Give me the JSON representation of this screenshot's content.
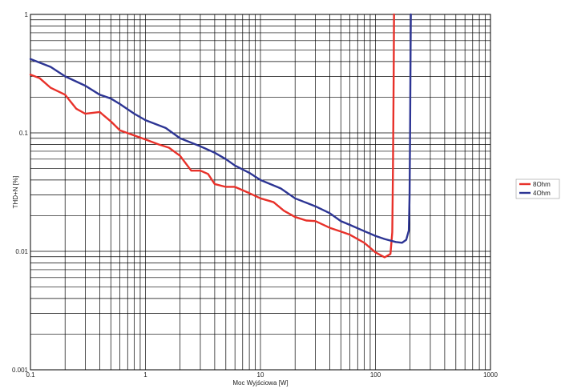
{
  "chart_data": {
    "type": "line",
    "title": "",
    "xlabel": "Moc Wyjściowa [W]",
    "ylabel": "THD+N [%]",
    "x_scale": "log",
    "y_scale": "log",
    "xlim": [
      0.1,
      1000
    ],
    "ylim": [
      0.001,
      1
    ],
    "x_tick_labels": [
      "0.1",
      "1",
      "10",
      "100",
      "1000"
    ],
    "y_tick_labels": [
      "0.001",
      "0.01",
      "0.1",
      "1"
    ],
    "grid": true,
    "legend_position": "right",
    "series": [
      {
        "name": "8Ohm",
        "color": "#e8312a",
        "points": [
          [
            0.1,
            0.31
          ],
          [
            0.12,
            0.29
          ],
          [
            0.15,
            0.24
          ],
          [
            0.2,
            0.21
          ],
          [
            0.25,
            0.16
          ],
          [
            0.3,
            0.145
          ],
          [
            0.4,
            0.15
          ],
          [
            0.5,
            0.125
          ],
          [
            0.6,
            0.105
          ],
          [
            0.8,
            0.095
          ],
          [
            1,
            0.088
          ],
          [
            1.3,
            0.08
          ],
          [
            1.6,
            0.075
          ],
          [
            2,
            0.064
          ],
          [
            2.5,
            0.048
          ],
          [
            3,
            0.048
          ],
          [
            3.5,
            0.045
          ],
          [
            4,
            0.037
          ],
          [
            5,
            0.035
          ],
          [
            6,
            0.035
          ],
          [
            8,
            0.031
          ],
          [
            10,
            0.028
          ],
          [
            13,
            0.026
          ],
          [
            16,
            0.022
          ],
          [
            20,
            0.0195
          ],
          [
            25,
            0.0182
          ],
          [
            30,
            0.018
          ],
          [
            40,
            0.0158
          ],
          [
            50,
            0.0147
          ],
          [
            60,
            0.0138
          ],
          [
            80,
            0.0118
          ],
          [
            100,
            0.0098
          ],
          [
            120,
            0.0089
          ],
          [
            135,
            0.0095
          ],
          [
            140,
            0.0145
          ],
          [
            142,
            0.05
          ],
          [
            144,
            0.3
          ],
          [
            145,
            1
          ]
        ]
      },
      {
        "name": "4Ohm",
        "color": "#2d3594",
        "points": [
          [
            0.1,
            0.42
          ],
          [
            0.15,
            0.36
          ],
          [
            0.2,
            0.3
          ],
          [
            0.3,
            0.25
          ],
          [
            0.4,
            0.21
          ],
          [
            0.5,
            0.195
          ],
          [
            0.6,
            0.175
          ],
          [
            0.8,
            0.145
          ],
          [
            1,
            0.128
          ],
          [
            1.5,
            0.11
          ],
          [
            2,
            0.09
          ],
          [
            3,
            0.077
          ],
          [
            4,
            0.068
          ],
          [
            5,
            0.06
          ],
          [
            6,
            0.053
          ],
          [
            8,
            0.046
          ],
          [
            10,
            0.04
          ],
          [
            15,
            0.034
          ],
          [
            20,
            0.028
          ],
          [
            30,
            0.024
          ],
          [
            40,
            0.021
          ],
          [
            50,
            0.018
          ],
          [
            60,
            0.0167
          ],
          [
            80,
            0.0148
          ],
          [
            100,
            0.0135
          ],
          [
            120,
            0.0127
          ],
          [
            150,
            0.012
          ],
          [
            170,
            0.0118
          ],
          [
            185,
            0.0125
          ],
          [
            195,
            0.015
          ],
          [
            198,
            0.03
          ],
          [
            200,
            0.1
          ],
          [
            202,
            0.5
          ],
          [
            203,
            1
          ]
        ]
      }
    ]
  }
}
